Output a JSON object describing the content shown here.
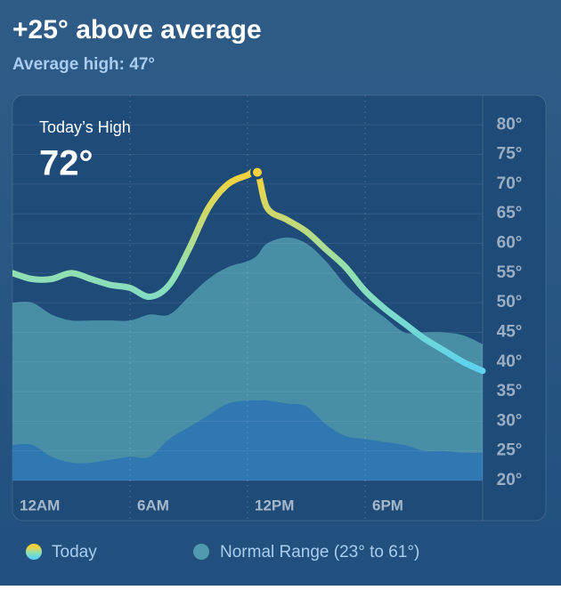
{
  "header": {
    "title": "+25° above average",
    "subtitle": "Average high: 47°"
  },
  "chart_data": {
    "type": "line",
    "annotation": {
      "label": "Today’s High",
      "value": 72,
      "value_label": "72°"
    },
    "x": [
      0,
      1,
      2,
      3,
      4,
      5,
      6,
      7,
      8,
      9,
      10,
      11,
      12,
      12.5,
      13,
      14,
      15,
      16,
      17,
      18,
      19,
      20,
      21,
      22,
      23,
      24
    ],
    "xlim": [
      0,
      24
    ],
    "xticks": [
      {
        "value": 0,
        "label": "12AM"
      },
      {
        "value": 6,
        "label": "6AM"
      },
      {
        "value": 12,
        "label": "12PM"
      },
      {
        "value": 18,
        "label": "6PM"
      }
    ],
    "ylim": [
      20,
      85
    ],
    "yticks": [
      {
        "value": 20,
        "label": "20°"
      },
      {
        "value": 25,
        "label": "25°"
      },
      {
        "value": 30,
        "label": "30°"
      },
      {
        "value": 35,
        "label": "35°"
      },
      {
        "value": 40,
        "label": "40°"
      },
      {
        "value": 45,
        "label": "45°"
      },
      {
        "value": 50,
        "label": "50°"
      },
      {
        "value": 55,
        "label": "55°"
      },
      {
        "value": 60,
        "label": "60°"
      },
      {
        "value": 65,
        "label": "65°"
      },
      {
        "value": 70,
        "label": "70°"
      },
      {
        "value": 75,
        "label": "75°"
      },
      {
        "value": 80,
        "label": "80°"
      }
    ],
    "grid": true,
    "series": [
      {
        "name": "Today",
        "colors": [
          "#f7d23a",
          "#92e0b2",
          "#5cd2ee"
        ],
        "values": [
          55,
          54,
          54,
          55,
          54,
          53,
          52.5,
          51,
          53,
          59,
          66,
          70,
          71.5,
          72,
          66,
          64,
          62,
          59,
          56,
          52,
          49,
          46.5,
          44,
          42,
          40,
          38.5
        ]
      },
      {
        "name": "Normal Range (23° to 61°)",
        "color": "#4f9aae",
        "low_color": "#2f78b2",
        "high": [
          50,
          50,
          48,
          47,
          47,
          47,
          47,
          48,
          48,
          51,
          54,
          56,
          57,
          58,
          60,
          61,
          60,
          57,
          53,
          50,
          47.5,
          45,
          45,
          45,
          44.5,
          43
        ],
        "low": [
          26,
          26,
          24,
          23,
          23,
          23.5,
          24,
          24,
          27,
          29,
          31,
          33,
          33.5,
          33.5,
          33.5,
          33,
          32.5,
          29.5,
          27.5,
          27,
          26.5,
          26,
          25,
          25,
          24.7,
          24.7
        ]
      }
    ]
  }
}
